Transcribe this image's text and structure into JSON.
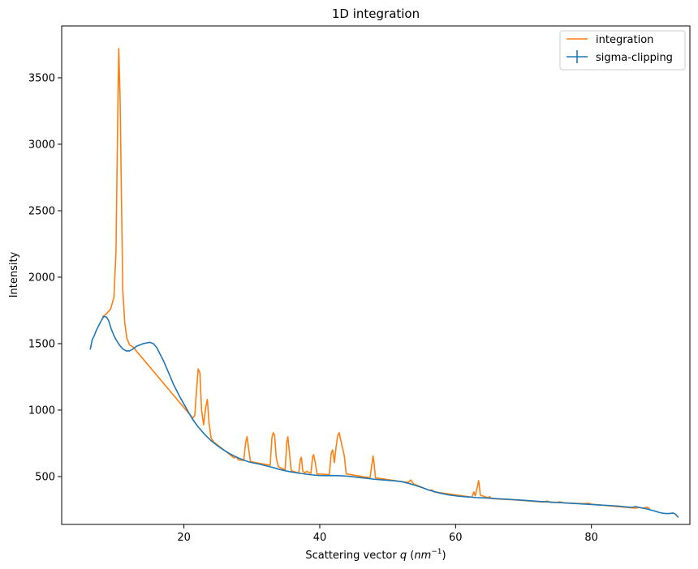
{
  "chart_data": {
    "type": "line",
    "title": "1D integration",
    "xlabel": "Scattering vector",
    "xlabel_var": "q",
    "xlabel_unit_base": "nm",
    "xlabel_unit_exp": "−1",
    "ylabel": "Intensity",
    "xlim": [
      2,
      94.5
    ],
    "ylim": [
      140,
      3890
    ],
    "x_ticks": [
      20,
      40,
      60,
      80
    ],
    "y_ticks": [
      500,
      1000,
      1500,
      2000,
      2500,
      3000,
      3500
    ],
    "grid": false,
    "legend_placement": "top-right",
    "series": [
      {
        "name": "integration",
        "color": "#ff7f0e",
        "points": [
          [
            8.0,
            1700
          ],
          [
            8.6,
            1725
          ],
          [
            9.2,
            1760
          ],
          [
            9.7,
            1850
          ],
          [
            10.0,
            2200
          ],
          [
            10.2,
            3000
          ],
          [
            10.4,
            3720
          ],
          [
            10.6,
            3350
          ],
          [
            10.8,
            2600
          ],
          [
            11.0,
            1900
          ],
          [
            11.3,
            1650
          ],
          [
            11.6,
            1540
          ],
          [
            12.0,
            1490
          ],
          [
            12.5,
            1475
          ],
          [
            21.3,
            940
          ],
          [
            21.6,
            960
          ],
          [
            21.9,
            1180
          ],
          [
            22.1,
            1310
          ],
          [
            22.35,
            1280
          ],
          [
            22.6,
            1000
          ],
          [
            22.9,
            890
          ],
          [
            23.2,
            1020
          ],
          [
            23.45,
            1080
          ],
          [
            23.7,
            900
          ],
          [
            24.0,
            790
          ],
          [
            24.4,
            760
          ],
          [
            27.4,
            640
          ],
          [
            27.7,
            650
          ],
          [
            28.0,
            625
          ],
          [
            28.8,
            622
          ],
          [
            29.1,
            760
          ],
          [
            29.3,
            800
          ],
          [
            29.55,
            700
          ],
          [
            29.8,
            612
          ],
          [
            32.7,
            585
          ],
          [
            32.95,
            790
          ],
          [
            33.15,
            830
          ],
          [
            33.35,
            810
          ],
          [
            33.6,
            640
          ],
          [
            33.9,
            575
          ],
          [
            34.9,
            550
          ],
          [
            35.15,
            760
          ],
          [
            35.3,
            800
          ],
          [
            35.5,
            700
          ],
          [
            35.8,
            545
          ],
          [
            36.9,
            525
          ],
          [
            37.15,
            630
          ],
          [
            37.3,
            645
          ],
          [
            37.5,
            540
          ],
          [
            37.8,
            528
          ],
          [
            38.1,
            540
          ],
          [
            38.4,
            530
          ],
          [
            38.7,
            525
          ],
          [
            38.95,
            650
          ],
          [
            39.1,
            665
          ],
          [
            39.35,
            600
          ],
          [
            39.6,
            520
          ],
          [
            41.4,
            515
          ],
          [
            41.7,
            680
          ],
          [
            41.9,
            700
          ],
          [
            42.15,
            605
          ],
          [
            42.4,
            720
          ],
          [
            42.65,
            810
          ],
          [
            42.85,
            830
          ],
          [
            43.2,
            750
          ],
          [
            43.6,
            660
          ],
          [
            43.9,
            520
          ],
          [
            47.4,
            490
          ],
          [
            47.7,
            600
          ],
          [
            47.85,
            655
          ],
          [
            48.0,
            600
          ],
          [
            48.2,
            490
          ],
          [
            53.0,
            455
          ],
          [
            53.4,
            475
          ],
          [
            53.8,
            445
          ],
          [
            56.2,
            395
          ],
          [
            56.5,
            400
          ],
          [
            56.8,
            385
          ],
          [
            62.4,
            345
          ],
          [
            62.7,
            385
          ],
          [
            62.9,
            355
          ],
          [
            63.2,
            420
          ],
          [
            63.4,
            470
          ],
          [
            63.65,
            360
          ],
          [
            64.8,
            340
          ],
          [
            65.0,
            350
          ],
          [
            65.3,
            335
          ],
          [
            66.5,
            330
          ],
          [
            67.5,
            328
          ],
          [
            68.2,
            326
          ],
          [
            73.0,
            308
          ],
          [
            73.5,
            316
          ],
          [
            74.0,
            306
          ],
          [
            74.8,
            305
          ],
          [
            75.3,
            310
          ],
          [
            76.0,
            302
          ],
          [
            79.0,
            296
          ],
          [
            79.5,
            300
          ],
          [
            80.0,
            292
          ],
          [
            86.5,
            262
          ],
          [
            87.0,
            268
          ],
          [
            87.5,
            262
          ],
          [
            87.8,
            265
          ],
          [
            88.2,
            270
          ],
          [
            88.6,
            258
          ]
        ]
      },
      {
        "name": "sigma-clipping",
        "color": "#1f77b4",
        "points": [
          [
            6.2,
            1455
          ],
          [
            6.5,
            1530
          ],
          [
            6.8,
            1560
          ],
          [
            7.1,
            1600
          ],
          [
            7.5,
            1640
          ],
          [
            7.9,
            1680
          ],
          [
            8.2,
            1705
          ],
          [
            8.6,
            1700
          ],
          [
            8.9,
            1675
          ],
          [
            9.3,
            1610
          ],
          [
            9.7,
            1560
          ],
          [
            10.0,
            1530
          ],
          [
            10.5,
            1490
          ],
          [
            11.0,
            1460
          ],
          [
            11.5,
            1445
          ],
          [
            12.0,
            1445
          ],
          [
            12.5,
            1460
          ],
          [
            13.0,
            1480
          ],
          [
            13.5,
            1490
          ],
          [
            14.0,
            1500
          ],
          [
            14.5,
            1505
          ],
          [
            15.0,
            1510
          ],
          [
            15.5,
            1500
          ],
          [
            16.0,
            1470
          ],
          [
            16.5,
            1420
          ],
          [
            17.0,
            1370
          ],
          [
            17.5,
            1310
          ],
          [
            18.0,
            1250
          ],
          [
            18.5,
            1190
          ],
          [
            19.0,
            1140
          ],
          [
            19.5,
            1090
          ],
          [
            20.0,
            1045
          ],
          [
            20.5,
            1000
          ],
          [
            21.0,
            955
          ],
          [
            21.5,
            915
          ],
          [
            22.0,
            880
          ],
          [
            22.5,
            850
          ],
          [
            23.0,
            820
          ],
          [
            23.5,
            795
          ],
          [
            24.0,
            770
          ],
          [
            24.5,
            750
          ],
          [
            25.0,
            730
          ],
          [
            25.5,
            712
          ],
          [
            26.0,
            695
          ],
          [
            26.5,
            680
          ],
          [
            27.0,
            665
          ],
          [
            27.5,
            652
          ],
          [
            28.0,
            640
          ],
          [
            28.5,
            630
          ],
          [
            29.0,
            620
          ],
          [
            29.5,
            612
          ],
          [
            30.0,
            605
          ],
          [
            31.0,
            595
          ],
          [
            32.0,
            582
          ],
          [
            33.0,
            570
          ],
          [
            34.0,
            555
          ],
          [
            35.0,
            543
          ],
          [
            36.0,
            533
          ],
          [
            37.0,
            525
          ],
          [
            38.0,
            518
          ],
          [
            39.0,
            512
          ],
          [
            40.0,
            508
          ],
          [
            41.0,
            507
          ],
          [
            42.0,
            508
          ],
          [
            43.0,
            506
          ],
          [
            44.0,
            503
          ],
          [
            45.0,
            498
          ],
          [
            46.0,
            492
          ],
          [
            47.0,
            486
          ],
          [
            48.0,
            480
          ],
          [
            49.0,
            476
          ],
          [
            50.0,
            472
          ],
          [
            51.0,
            468
          ],
          [
            52.0,
            462
          ],
          [
            53.0,
            450
          ],
          [
            54.0,
            435
          ],
          [
            55.0,
            418
          ],
          [
            56.0,
            400
          ],
          [
            57.0,
            385
          ],
          [
            58.0,
            372
          ],
          [
            59.0,
            362
          ],
          [
            60.0,
            355
          ],
          [
            61.0,
            350
          ],
          [
            62.0,
            346
          ],
          [
            63.0,
            342
          ],
          [
            64.0,
            340
          ],
          [
            65.0,
            337
          ],
          [
            66.0,
            334
          ],
          [
            67.0,
            331
          ],
          [
            68.0,
            328
          ],
          [
            69.0,
            325
          ],
          [
            70.0,
            322
          ],
          [
            71.0,
            318
          ],
          [
            72.0,
            314
          ],
          [
            73.0,
            311
          ],
          [
            74.0,
            308
          ],
          [
            75.0,
            305
          ],
          [
            76.0,
            302
          ],
          [
            77.0,
            299
          ],
          [
            78.0,
            296
          ],
          [
            79.0,
            293
          ],
          [
            80.0,
            290
          ],
          [
            81.0,
            287
          ],
          [
            82.0,
            284
          ],
          [
            83.0,
            281
          ],
          [
            84.0,
            278
          ],
          [
            85.0,
            272
          ],
          [
            86.0,
            268
          ],
          [
            86.5,
            275
          ],
          [
            87.0,
            268
          ],
          [
            88.0,
            258
          ],
          [
            89.0,
            245
          ],
          [
            89.5,
            238
          ],
          [
            90.0,
            230
          ],
          [
            90.5,
            224
          ],
          [
            91.0,
            222
          ],
          [
            91.5,
            222
          ],
          [
            92.0,
            226
          ],
          [
            92.3,
            220
          ],
          [
            92.6,
            205
          ],
          [
            92.8,
            192
          ]
        ]
      }
    ]
  }
}
